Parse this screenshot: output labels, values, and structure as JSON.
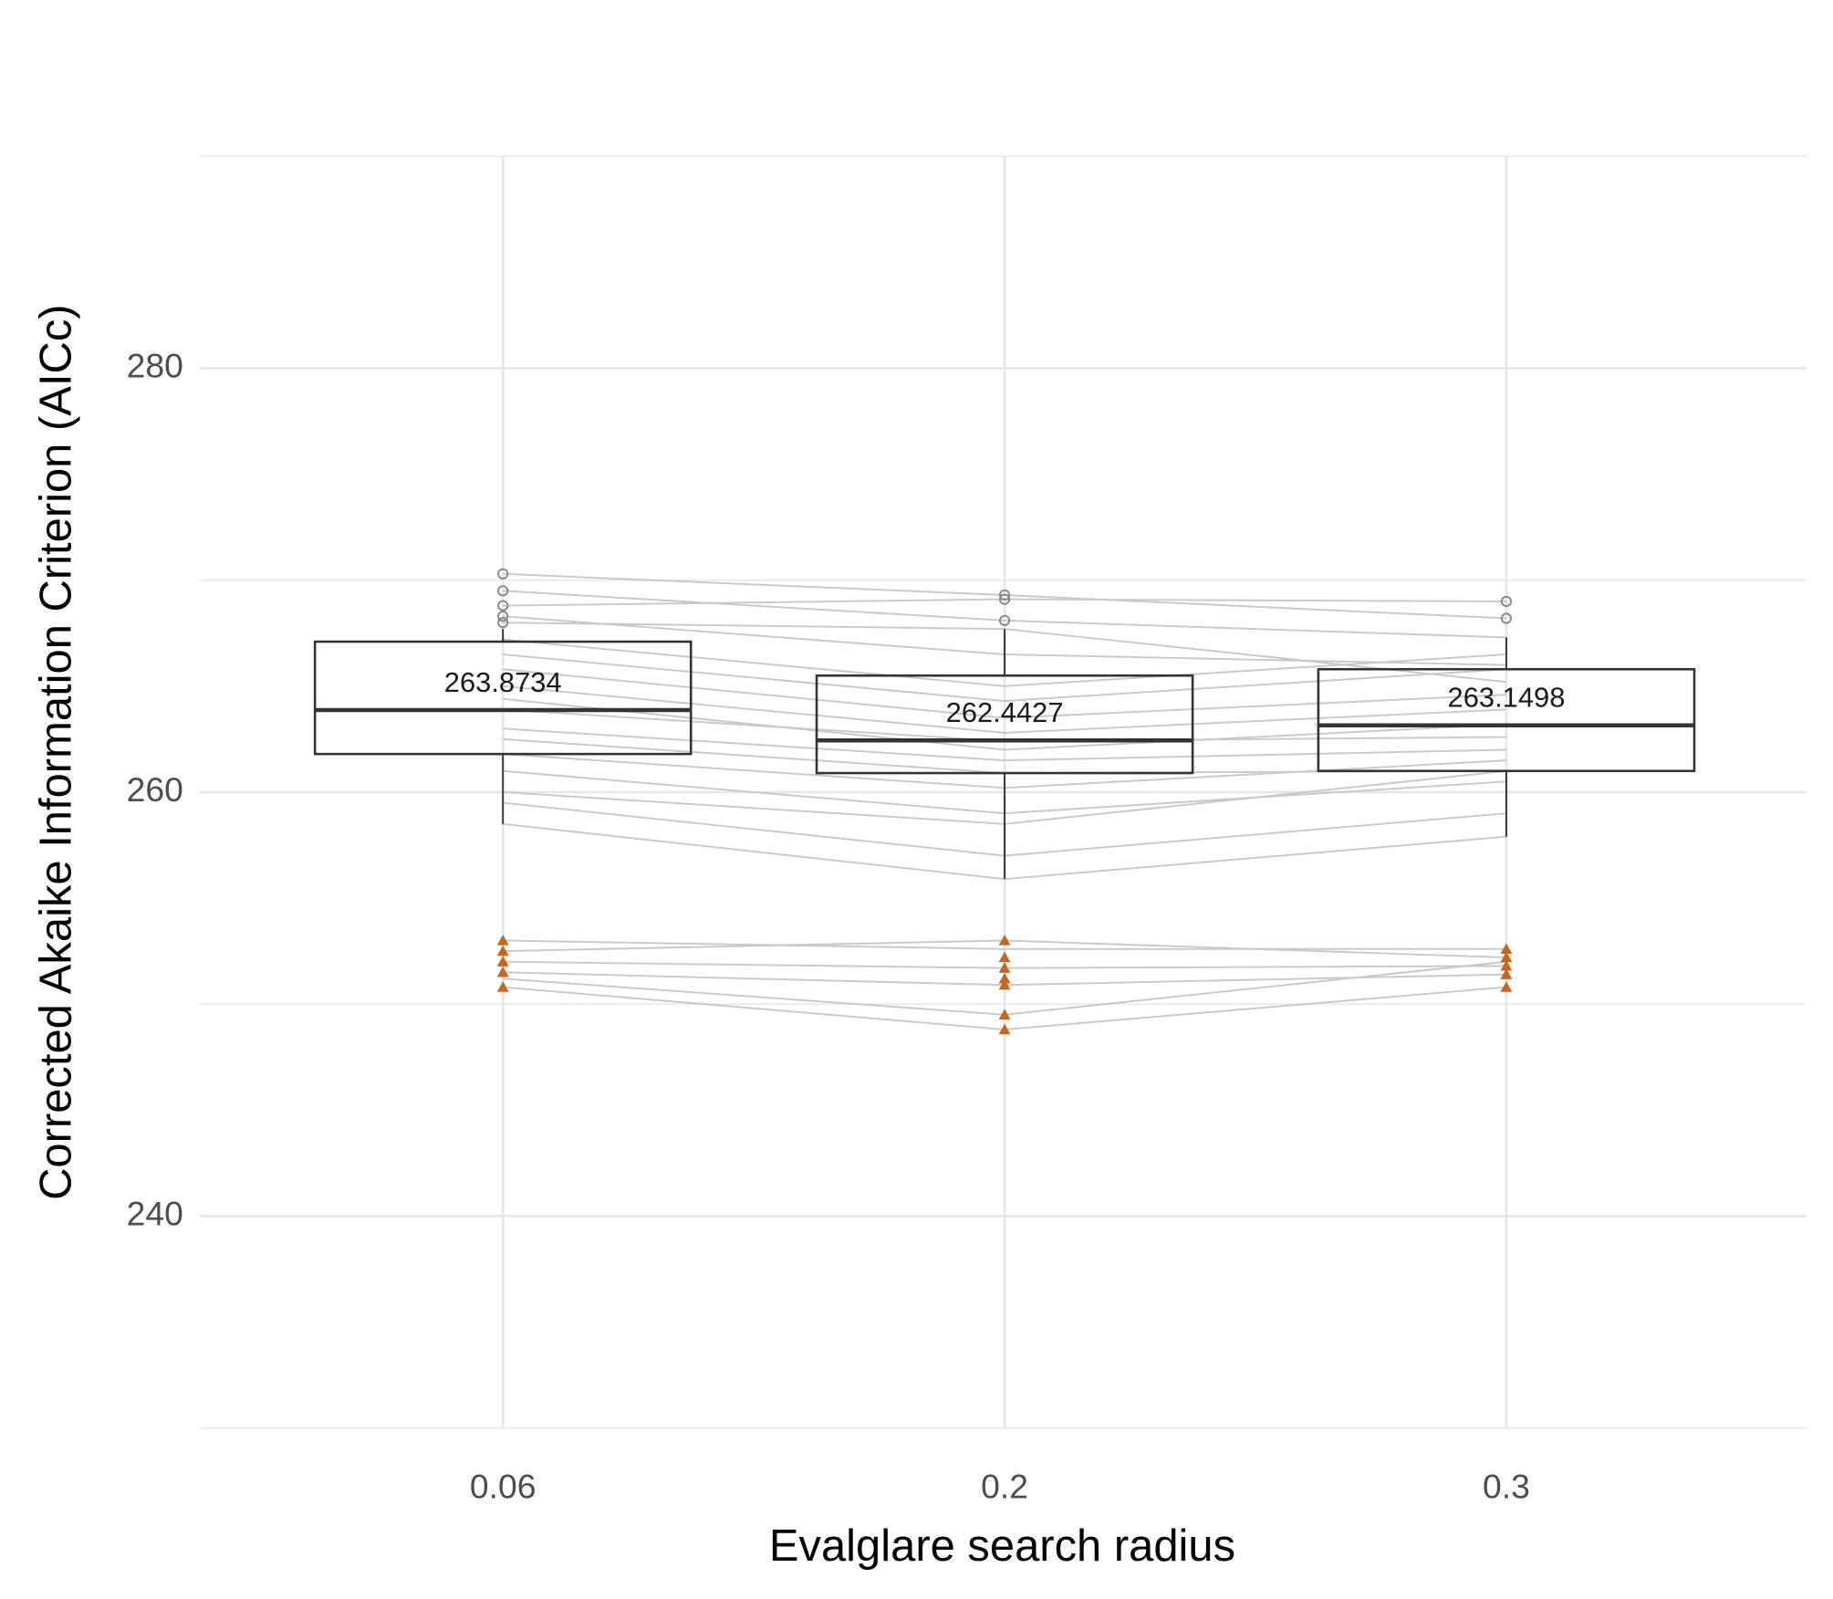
{
  "chart_data": {
    "type": "box",
    "x_label": "Evalglare search radius",
    "y_label": "Corrected Akaike Information Criterion (AICc)",
    "categories": [
      "0.06",
      "0.2",
      "0.3"
    ],
    "ylim": [
      230,
      290
    ],
    "yticks": [
      240,
      260,
      280
    ],
    "minor_grid": [
      230,
      250,
      270,
      290
    ],
    "grid": true,
    "box_color": "#333333",
    "line_color": "#c8c8c8",
    "outlier_color": "#888888",
    "highlight_color": "#c8661e",
    "boxes": [
      {
        "lower": 258.5,
        "q1": 261.8,
        "median": 263.8734,
        "q3": 267.1,
        "upper": 267.7,
        "outliers": [
          270.3,
          269.5,
          268.8,
          268.3,
          268.0
        ]
      },
      {
        "lower": 255.9,
        "q1": 260.9,
        "median": 262.4427,
        "q3": 265.5,
        "upper": 267.7,
        "outliers": [
          269.3,
          269.1,
          268.1
        ]
      },
      {
        "lower": 257.9,
        "q1": 261.0,
        "median": 263.1498,
        "q3": 265.8,
        "upper": 267.3,
        "outliers": [
          269.0,
          268.2
        ]
      }
    ],
    "paired_lines": [
      [
        270.3,
        269.3,
        268.2
      ],
      [
        269.5,
        268.1,
        267.3
      ],
      [
        268.8,
        269.1,
        269.0
      ],
      [
        268.3,
        266.5,
        266.0
      ],
      [
        268.0,
        267.7,
        265.2
      ],
      [
        267.2,
        265.0,
        266.5
      ],
      [
        266.5,
        264.3,
        265.8
      ],
      [
        265.8,
        263.5,
        264.6
      ],
      [
        265.0,
        262.8,
        263.9
      ],
      [
        264.4,
        262.0,
        263.2
      ],
      [
        263.9,
        262.4,
        262.6
      ],
      [
        263.0,
        261.5,
        262.0
      ],
      [
        262.5,
        260.9,
        261.0
      ],
      [
        261.8,
        260.2,
        261.5
      ],
      [
        261.0,
        259.0,
        260.5
      ],
      [
        260.0,
        258.5,
        261.0
      ],
      [
        259.5,
        257.0,
        259.0
      ],
      [
        258.5,
        255.9,
        257.9
      ],
      [
        253.0,
        252.6,
        252.6
      ],
      [
        252.5,
        253.0,
        252.2
      ],
      [
        252.0,
        251.7,
        251.8
      ],
      [
        251.5,
        250.9,
        251.4
      ],
      [
        250.8,
        248.8,
        250.8
      ],
      [
        251.2,
        249.5,
        252.0
      ]
    ],
    "highlight_points": [
      [
        253.0,
        252.5,
        252.0,
        251.5,
        250.8
      ],
      [
        253.0,
        252.2,
        251.7,
        251.2,
        250.9,
        249.5,
        248.8
      ],
      [
        252.6,
        252.2,
        251.8,
        251.4,
        250.8
      ]
    ]
  }
}
